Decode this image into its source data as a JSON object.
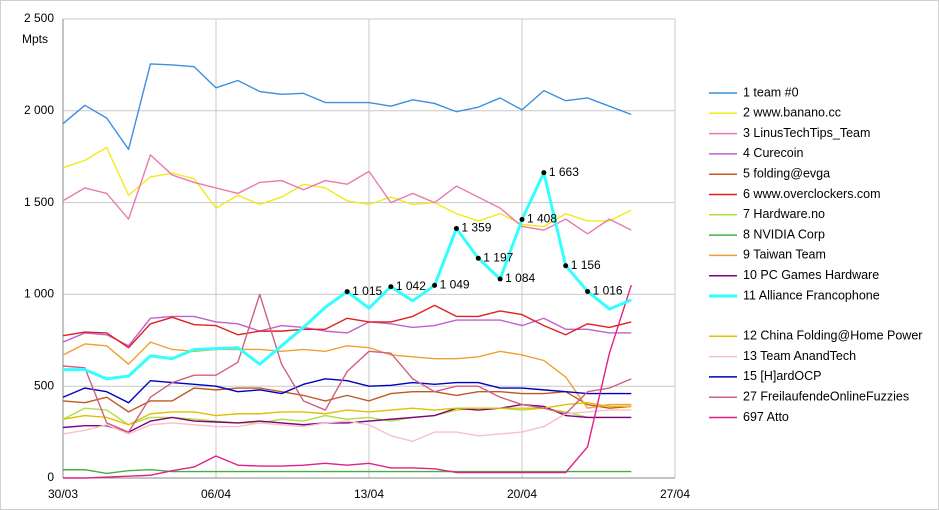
{
  "chart_data": {
    "type": "line",
    "y_label": "Mpts",
    "categories": [
      "30/03",
      null,
      null,
      null,
      null,
      null,
      null,
      "06/04",
      null,
      null,
      null,
      null,
      null,
      null,
      "13/04",
      null,
      null,
      null,
      null,
      null,
      null,
      "20/04",
      null,
      null,
      null,
      null,
      null,
      null,
      "27/04"
    ],
    "ylim": [
      0,
      2500
    ],
    "yticks": [
      {
        "value": 0,
        "label": "0"
      },
      {
        "value": 500,
        "label": "500"
      },
      {
        "value": 1000,
        "label": "1 000"
      },
      {
        "value": 1500,
        "label": "1 500"
      },
      {
        "value": 2000,
        "label": "2 000"
      },
      {
        "value": 2500,
        "label": "2 500"
      }
    ],
    "grid": true,
    "legend": "right",
    "series": [
      {
        "name": "1 team #0",
        "color": "#3d8fe0",
        "values": [
          1930,
          2030,
          1960,
          1790,
          2255,
          2250,
          2240,
          2125,
          2165,
          2105,
          2090,
          2095,
          2045,
          2045,
          2045,
          2025,
          2060,
          2040,
          1995,
          2020,
          2070,
          2005,
          2110,
          2055,
          2070,
          2025,
          1980,
          null,
          null
        ]
      },
      {
        "name": "2 www.banano.cc",
        "color": "#f2ea1a",
        "values": [
          1690,
          1730,
          1800,
          1540,
          1640,
          1660,
          1630,
          1470,
          1540,
          1490,
          1530,
          1600,
          1580,
          1510,
          1490,
          1530,
          1490,
          1500,
          1440,
          1400,
          1440,
          1380,
          1370,
          1440,
          1400,
          1400,
          1460,
          null,
          null
        ]
      },
      {
        "name": "3 LinusTechTips_Team",
        "color": "#ea7ab2",
        "values": [
          1510,
          1580,
          1550,
          1410,
          1760,
          1650,
          1610,
          1580,
          1550,
          1610,
          1620,
          1570,
          1620,
          1600,
          1670,
          1500,
          1550,
          1500,
          1590,
          1530,
          1470,
          1370,
          1350,
          1410,
          1330,
          1410,
          1350,
          null,
          null
        ]
      },
      {
        "name": "4 Curecoin",
        "color": "#c060d0",
        "values": [
          740,
          790,
          780,
          720,
          870,
          880,
          880,
          850,
          840,
          800,
          830,
          820,
          800,
          790,
          850,
          840,
          820,
          830,
          860,
          860,
          860,
          830,
          870,
          810,
          810,
          790,
          790,
          null,
          null
        ]
      },
      {
        "name": "5 folding@evga",
        "color": "#c05a20",
        "values": [
          420,
          410,
          440,
          360,
          420,
          420,
          490,
          480,
          490,
          490,
          470,
          450,
          420,
          450,
          420,
          460,
          470,
          470,
          450,
          470,
          470,
          460,
          460,
          470,
          400,
          380,
          390,
          null,
          null
        ]
      },
      {
        "name": "6 www.overclockers.com",
        "color": "#e02020",
        "values": [
          775,
          795,
          790,
          710,
          840,
          875,
          835,
          830,
          780,
          800,
          800,
          810,
          810,
          870,
          850,
          850,
          880,
          940,
          880,
          880,
          910,
          890,
          830,
          780,
          840,
          820,
          850,
          null,
          null
        ]
      },
      {
        "name": "7 Hardware.no",
        "color": "#b0e040",
        "values": [
          320,
          380,
          370,
          290,
          330,
          330,
          320,
          310,
          300,
          300,
          320,
          310,
          340,
          320,
          330,
          310,
          330,
          340,
          370,
          380,
          380,
          370,
          380,
          360,
          330,
          330,
          330,
          null,
          null
        ]
      },
      {
        "name": "8 NVIDIA Corp",
        "color": "#40b040",
        "values": [
          45,
          45,
          25,
          40,
          45,
          35,
          35,
          35,
          35,
          35,
          35,
          35,
          35,
          35,
          35,
          35,
          35,
          35,
          35,
          35,
          35,
          35,
          35,
          35,
          35,
          35,
          35,
          null,
          null
        ]
      },
      {
        "name": "9 Taiwan Team",
        "color": "#f0a030",
        "values": [
          670,
          730,
          720,
          620,
          740,
          700,
          690,
          700,
          700,
          700,
          690,
          700,
          690,
          720,
          710,
          670,
          660,
          650,
          650,
          660,
          690,
          670,
          640,
          550,
          380,
          400,
          400,
          null,
          null
        ]
      },
      {
        "name": "10 PC Games Hardware",
        "color": "#800080",
        "values": [
          275,
          285,
          285,
          250,
          310,
          330,
          310,
          305,
          300,
          310,
          300,
          290,
          300,
          300,
          310,
          320,
          330,
          340,
          380,
          370,
          380,
          400,
          390,
          340,
          330,
          330,
          330,
          null,
          null
        ]
      },
      {
        "name": "11 Alliance Francophone",
        "color": "#33ffff",
        "line_width": 3,
        "values": [
          590,
          590,
          540,
          555,
          665,
          650,
          700,
          705,
          710,
          620,
          720,
          820,
          930,
          1015,
          925,
          1042,
          965,
          1049,
          1359,
          1197,
          1084,
          1408,
          1663,
          1156,
          1016,
          920,
          970,
          null,
          null
        ],
        "value_labels": [
          null,
          null,
          null,
          null,
          null,
          null,
          null,
          null,
          null,
          null,
          null,
          null,
          null,
          "1 015",
          null,
          "1 042",
          null,
          "1 049",
          "1 359",
          "1 197",
          "1 084",
          "1 408",
          "1 663",
          "1 156",
          "1 016",
          null,
          null,
          null,
          null
        ]
      },
      {
        "name": "12 China Folding@Home Power",
        "color": "#e0c000",
        "values": [
          320,
          340,
          330,
          290,
          350,
          360,
          360,
          340,
          350,
          350,
          360,
          360,
          350,
          370,
          360,
          370,
          380,
          370,
          380,
          380,
          380,
          380,
          380,
          400,
          410,
          390,
          390,
          null,
          null
        ]
      },
      {
        "name": "13 Team AnandTech",
        "color": "#f8c0c8",
        "values": [
          240,
          260,
          290,
          240,
          290,
          300,
          290,
          280,
          280,
          300,
          290,
          280,
          300,
          310,
          290,
          230,
          200,
          250,
          250,
          230,
          240,
          250,
          280,
          350,
          360,
          370,
          370,
          null,
          null
        ]
      },
      {
        "name": "15 [H]ardOCP",
        "color": "#0000c0",
        "values": [
          440,
          490,
          470,
          410,
          530,
          520,
          510,
          500,
          470,
          480,
          460,
          510,
          540,
          530,
          500,
          505,
          520,
          510,
          520,
          520,
          490,
          490,
          480,
          470,
          460,
          460,
          460,
          null,
          null
        ]
      },
      {
        "name": "27 FreilaufendeOnlineFuzzies",
        "color": "#d06080",
        "values": [
          610,
          600,
          300,
          250,
          440,
          520,
          560,
          560,
          630,
          1000,
          620,
          420,
          370,
          580,
          690,
          680,
          540,
          470,
          500,
          500,
          440,
          400,
          380,
          350,
          470,
          490,
          540,
          null,
          null
        ]
      },
      {
        "name": "697 Atto",
        "color": "#e0208a",
        "values": [
          0,
          0,
          5,
          10,
          15,
          40,
          60,
          120,
          70,
          65,
          65,
          70,
          80,
          70,
          80,
          55,
          55,
          50,
          30,
          30,
          30,
          30,
          30,
          30,
          170,
          680,
          1050,
          null,
          null
        ]
      }
    ]
  }
}
